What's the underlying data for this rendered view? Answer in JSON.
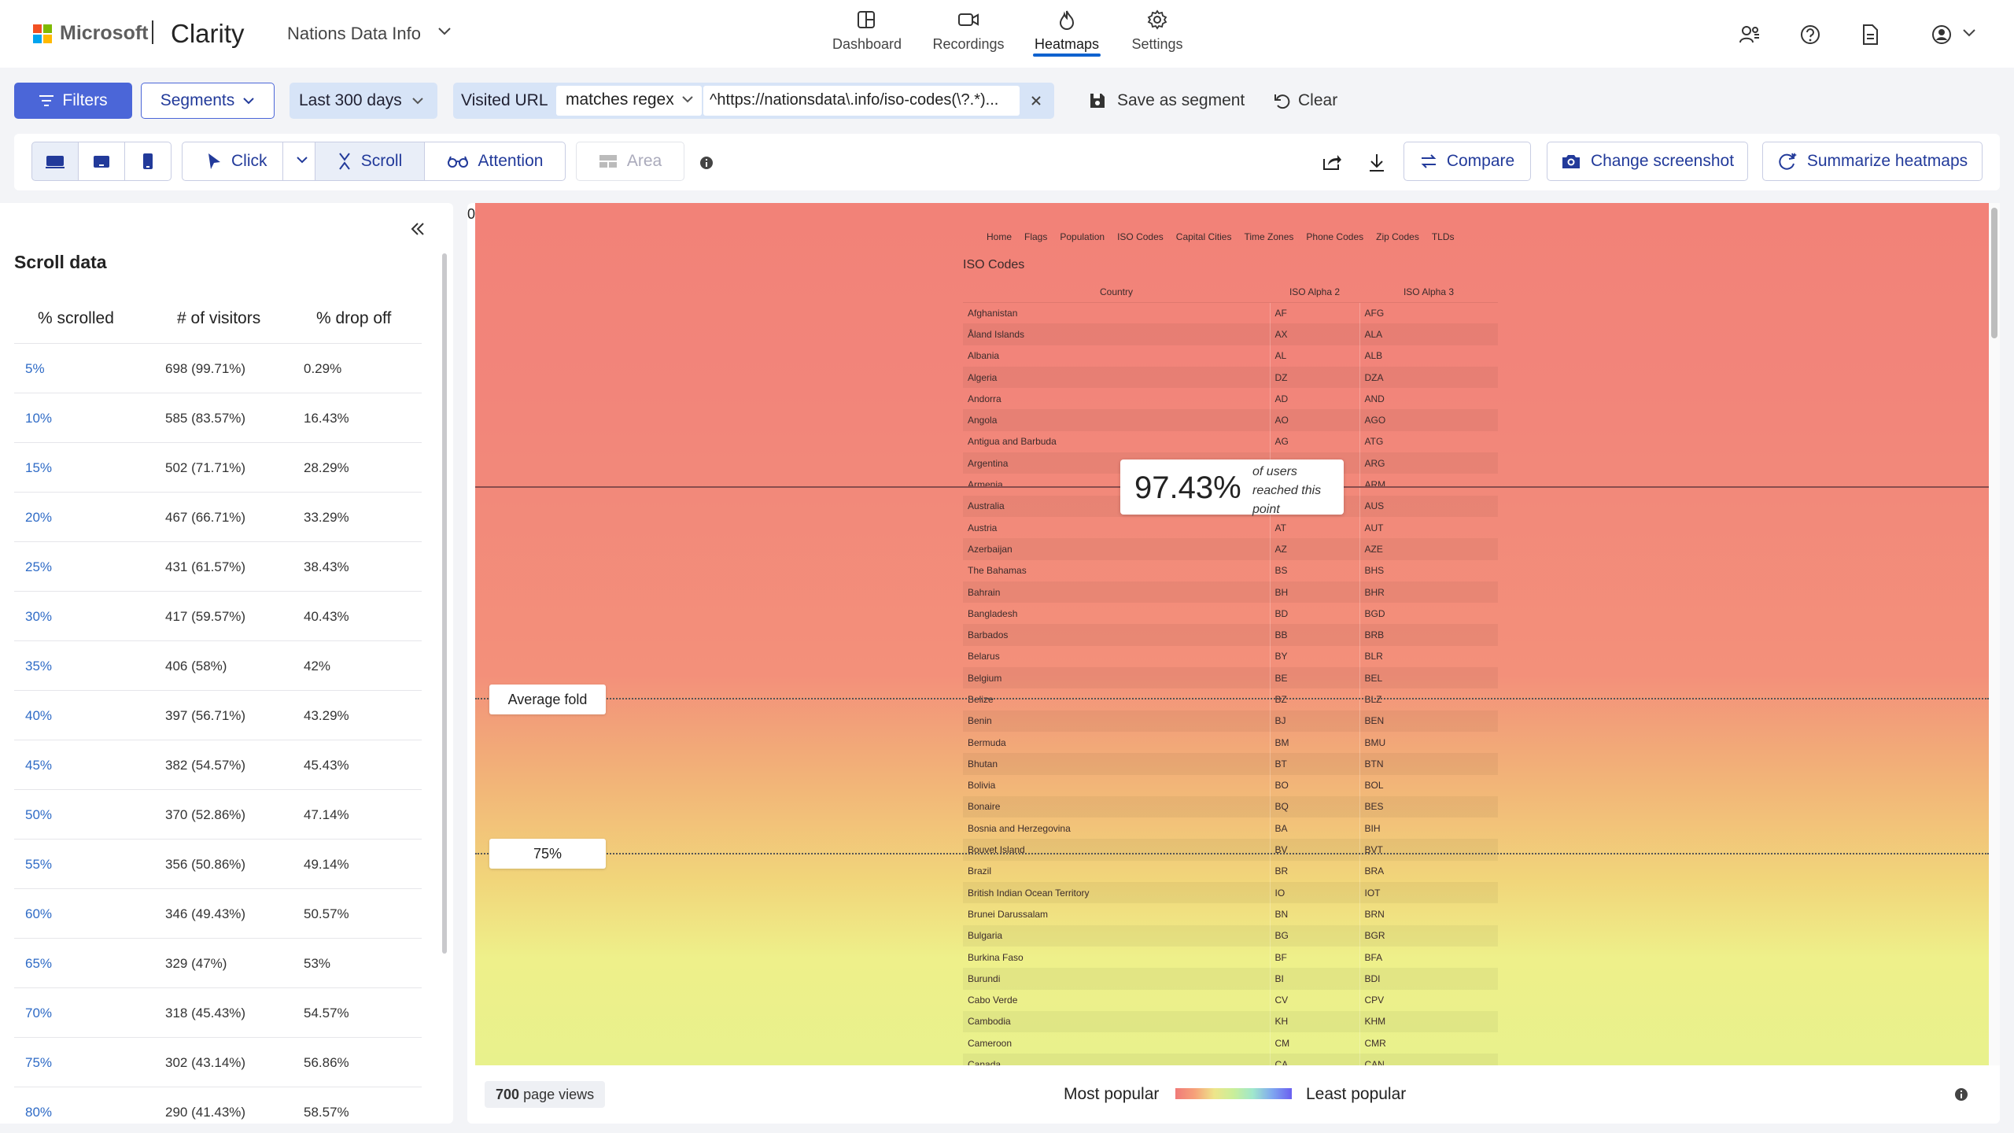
{
  "header": {
    "brand": "Microsoft",
    "product": "Clarity",
    "project": "Nations Data Info",
    "tabs": [
      {
        "label": "Dashboard",
        "icon": "dashboard-icon"
      },
      {
        "label": "Recordings",
        "icon": "video-camera-icon"
      },
      {
        "label": "Heatmaps",
        "icon": "flame-icon",
        "active": true
      },
      {
        "label": "Settings",
        "icon": "gear-icon"
      }
    ],
    "right_icons": [
      "people-settings-icon",
      "help-icon",
      "document-icon",
      "account-icon"
    ]
  },
  "filters": {
    "filters_label": "Filters",
    "segments_label": "Segments",
    "date_range": "Last 300 days",
    "url_filter": {
      "label": "Visited URL",
      "operator": "matches regex",
      "value": "^https://nationsdata\\.info/iso-codes(\\?.*)..."
    },
    "save_segment_label": "Save as segment",
    "clear_label": "Clear"
  },
  "toolbar": {
    "modes": {
      "click": "Click",
      "scroll": "Scroll",
      "attention": "Attention",
      "area": "Area"
    },
    "active_mode": "Scroll",
    "active_device": "desktop",
    "compare_label": "Compare",
    "change_screenshot_label": "Change screenshot",
    "summarize_label": "Summarize heatmaps"
  },
  "scroll_panel": {
    "title": "Scroll data",
    "columns": [
      "% scrolled",
      "# of visitors",
      "% drop off"
    ],
    "rows": [
      {
        "pct": "5%",
        "visitors": "698 (99.71%)",
        "dropoff": "0.29%"
      },
      {
        "pct": "10%",
        "visitors": "585 (83.57%)",
        "dropoff": "16.43%"
      },
      {
        "pct": "15%",
        "visitors": "502 (71.71%)",
        "dropoff": "28.29%"
      },
      {
        "pct": "20%",
        "visitors": "467 (66.71%)",
        "dropoff": "33.29%"
      },
      {
        "pct": "25%",
        "visitors": "431 (61.57%)",
        "dropoff": "38.43%"
      },
      {
        "pct": "30%",
        "visitors": "417 (59.57%)",
        "dropoff": "40.43%"
      },
      {
        "pct": "35%",
        "visitors": "406 (58%)",
        "dropoff": "42%"
      },
      {
        "pct": "40%",
        "visitors": "397 (56.71%)",
        "dropoff": "43.29%"
      },
      {
        "pct": "45%",
        "visitors": "382 (54.57%)",
        "dropoff": "45.43%"
      },
      {
        "pct": "50%",
        "visitors": "370 (52.86%)",
        "dropoff": "47.14%"
      },
      {
        "pct": "55%",
        "visitors": "356 (50.86%)",
        "dropoff": "49.14%"
      },
      {
        "pct": "60%",
        "visitors": "346 (49.43%)",
        "dropoff": "50.57%"
      },
      {
        "pct": "65%",
        "visitors": "329 (47%)",
        "dropoff": "53%"
      },
      {
        "pct": "70%",
        "visitors": "318 (45.43%)",
        "dropoff": "54.57%"
      },
      {
        "pct": "75%",
        "visitors": "302 (43.14%)",
        "dropoff": "56.86%"
      },
      {
        "pct": "80%",
        "visitors": "290 (41.43%)",
        "dropoff": "58.57%"
      }
    ]
  },
  "heatmap": {
    "top_marker": "0",
    "reach_pct": "97.43%",
    "reach_text": "of users reached this point",
    "average_fold_label": "Average fold",
    "fold_75_label": "75%",
    "site": {
      "nav": [
        "Home",
        "Flags",
        "Population",
        "ISO Codes",
        "Capital Cities",
        "Time Zones",
        "Phone Codes",
        "Zip Codes",
        "TLDs"
      ],
      "title": "ISO Codes",
      "table_headers": [
        "Country",
        "ISO Alpha 2",
        "ISO Alpha 3"
      ],
      "table_rows": [
        [
          "Afghanistan",
          "AF",
          "AFG"
        ],
        [
          "Åland Islands",
          "AX",
          "ALA"
        ],
        [
          "Albania",
          "AL",
          "ALB"
        ],
        [
          "Algeria",
          "DZ",
          "DZA"
        ],
        [
          "Andorra",
          "AD",
          "AND"
        ],
        [
          "Angola",
          "AO",
          "AGO"
        ],
        [
          "Antigua and Barbuda",
          "AG",
          "ATG"
        ],
        [
          "Argentina",
          "",
          "ARG"
        ],
        [
          "Armenia",
          "",
          "ARM"
        ],
        [
          "Australia",
          "",
          "AUS"
        ],
        [
          "Austria",
          "AT",
          "AUT"
        ],
        [
          "Azerbaijan",
          "AZ",
          "AZE"
        ],
        [
          "The Bahamas",
          "BS",
          "BHS"
        ],
        [
          "Bahrain",
          "BH",
          "BHR"
        ],
        [
          "Bangladesh",
          "BD",
          "BGD"
        ],
        [
          "Barbados",
          "BB",
          "BRB"
        ],
        [
          "Belarus",
          "BY",
          "BLR"
        ],
        [
          "Belgium",
          "BE",
          "BEL"
        ],
        [
          "Belize",
          "BZ",
          "BLZ"
        ],
        [
          "Benin",
          "BJ",
          "BEN"
        ],
        [
          "Bermuda",
          "BM",
          "BMU"
        ],
        [
          "Bhutan",
          "BT",
          "BTN"
        ],
        [
          "Bolivia",
          "BO",
          "BOL"
        ],
        [
          "Bonaire",
          "BQ",
          "BES"
        ],
        [
          "Bosnia and Herzegovina",
          "BA",
          "BIH"
        ],
        [
          "Bouvet Island",
          "BV",
          "BVT"
        ],
        [
          "Brazil",
          "BR",
          "BRA"
        ],
        [
          "British Indian Ocean Territory",
          "IO",
          "IOT"
        ],
        [
          "Brunei Darussalam",
          "BN",
          "BRN"
        ],
        [
          "Bulgaria",
          "BG",
          "BGR"
        ],
        [
          "Burkina Faso",
          "BF",
          "BFA"
        ],
        [
          "Burundi",
          "BI",
          "BDI"
        ],
        [
          "Cabo Verde",
          "CV",
          "CPV"
        ],
        [
          "Cambodia",
          "KH",
          "KHM"
        ],
        [
          "Cameroon",
          "CM",
          "CMR"
        ],
        [
          "Canada",
          "CA",
          "CAN"
        ]
      ]
    },
    "legend": {
      "page_views_count": "700",
      "page_views_suffix": "page views",
      "most_popular": "Most popular",
      "least_popular": "Least popular"
    }
  },
  "colors": {
    "accent": "#4b66d8",
    "link": "#2f6bc6",
    "active_tab_underline": "#0f62cf"
  }
}
